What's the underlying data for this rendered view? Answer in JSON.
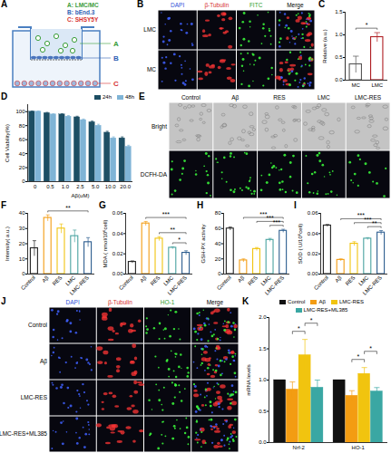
{
  "diagram": {
    "panel_label": "A",
    "legend": [
      {
        "key": "A",
        "text": "A: LMC/MC",
        "color": "#3a9d3a"
      },
      {
        "key": "B",
        "text": "B: bEnd.3",
        "color": "#2f5fb3"
      },
      {
        "key": "C",
        "text": "C: SHSY5Y",
        "color": "#d62f2f"
      }
    ]
  },
  "images": [
    {
      "panel_label": "B",
      "columns": [
        "DAPI",
        "β-Tubulin",
        "FITC",
        "Merge"
      ],
      "column_colors": [
        "#2f4fd8",
        "#d62f2f",
        "#2e9e2e",
        "#000000"
      ],
      "rows": [
        "LMC",
        "MC"
      ]
    },
    {
      "panel_label": "E",
      "columns": [
        "Control",
        "Aβ",
        "RES",
        "LMC",
        "LMC-RES"
      ],
      "rows": [
        "Bright",
        "DCFH-DA"
      ]
    },
    {
      "panel_label": "J",
      "columns": [
        "DAPI",
        "β-Tubulin",
        "HO-1",
        "Merge"
      ],
      "column_colors": [
        "#2f4fd8",
        "#d62f2f",
        "#2e9e2e",
        "#000000"
      ],
      "rows": [
        "Control",
        "Aβ",
        "LMC-RES",
        "LMC-RES+ML385"
      ]
    }
  ],
  "chart_data": [
    {
      "type": "bar",
      "panel_label": "C",
      "ylabel": "Relative (a.u.)",
      "categories": [
        "MC",
        "LMC"
      ],
      "series": [
        {
          "values": [
            0.35,
            0.95
          ],
          "errors": [
            0.18,
            0.1
          ]
        }
      ],
      "colors": [
        "#555555",
        "#b01e23"
      ],
      "ylim": [
        0,
        1.5
      ],
      "yticks": [
        {
          "value": 0,
          "label": "0.0"
        },
        {
          "value": 0.5,
          "label": "0.5"
        },
        {
          "value": 1,
          "label": "1.0"
        },
        {
          "value": 1.5,
          "label": "1.5"
        }
      ],
      "annotations": [
        {
          "text": "*",
          "from": "MC",
          "to": "LMC"
        }
      ]
    },
    {
      "type": "bar",
      "panel_label": "D",
      "ylabel": "Cell Viability(%)",
      "xlabel": "Aβ(uM)",
      "categories": [
        "0",
        "0.5",
        "1.0",
        "2.5",
        "5.0",
        "10.0",
        "20.0"
      ],
      "series": [
        {
          "name": "24h",
          "color": "#1d4e63",
          "values": [
            100,
            98,
            96,
            92,
            85,
            70,
            62
          ],
          "errors": [
            1,
            1,
            1,
            1.5,
            1.5,
            2,
            2
          ]
        },
        {
          "name": "48h",
          "color": "#7fb4d6",
          "values": [
            100,
            96,
            93,
            88,
            80,
            62,
            50
          ],
          "errors": [
            1,
            1,
            1.5,
            1.5,
            2,
            2,
            2
          ]
        }
      ],
      "ylim": [
        0,
        110
      ],
      "yticks": [
        0,
        20,
        40,
        60,
        80,
        100
      ],
      "legend": "top-right"
    },
    {
      "type": "bar",
      "panel_label": "F",
      "ylabel": "Intensity( a.u.)",
      "categories": [
        "Control",
        "Aβ",
        "RES",
        "LMC",
        "LMC-RES"
      ],
      "series": [
        {
          "values": [
            17,
            37,
            30,
            25,
            21
          ],
          "errors": [
            5,
            2,
            3,
            4,
            3
          ]
        }
      ],
      "colors": [
        "#222222",
        "#f39c12",
        "#f1c40f",
        "#4aa3a1",
        "#2c5d8f"
      ],
      "ylim": [
        0,
        40
      ],
      "yticks": [
        0,
        10,
        20,
        30,
        40
      ],
      "annotations": [
        {
          "text": "**",
          "from": "Aβ",
          "to": "LMC-RES"
        }
      ]
    },
    {
      "type": "bar",
      "panel_label": "G",
      "ylabel": "MDA ( nmol/10⁶cell)",
      "categories": [
        "Control",
        "Aβ",
        "RES",
        "LMC",
        "LMC-RES"
      ],
      "series": [
        {
          "values": [
            0.012,
            0.05,
            0.035,
            0.026,
            0.021
          ],
          "errors": [
            0.001,
            0.002,
            0.002,
            0.001,
            0.002
          ]
        }
      ],
      "colors": [
        "#222222",
        "#f39c12",
        "#f1c40f",
        "#4aa3a1",
        "#2c5d8f"
      ],
      "ylim": [
        0,
        0.06
      ],
      "yticks": [
        {
          "value": 0,
          "label": "0.00"
        },
        {
          "value": 0.02,
          "label": "0.02"
        },
        {
          "value": 0.04,
          "label": "0.04"
        },
        {
          "value": 0.06,
          "label": "0.06"
        }
      ],
      "annotations": [
        {
          "text": "*",
          "from": "LMC",
          "to": "LMC-RES"
        },
        {
          "text": "**",
          "from": "RES",
          "to": "LMC-RES"
        },
        {
          "text": "***",
          "from": "Aβ",
          "to": "LMC-RES"
        }
      ]
    },
    {
      "type": "bar",
      "panel_label": "H",
      "ylabel": "GSH-PX activity",
      "categories": [
        "Control",
        "Aβ",
        "RES",
        "LMC",
        "LMC-RES"
      ],
      "series": [
        {
          "values": [
            60,
            18,
            33,
            45,
            57
          ],
          "errors": [
            2,
            2,
            2,
            2,
            2
          ]
        }
      ],
      "colors": [
        "#222222",
        "#f39c12",
        "#f1c40f",
        "#4aa3a1",
        "#2c5d8f"
      ],
      "ylim": [
        0,
        80
      ],
      "yticks": [
        0,
        20,
        40,
        60,
        80
      ],
      "annotations": [
        {
          "text": "***",
          "from": "LMC",
          "to": "LMC-RES"
        },
        {
          "text": "***",
          "from": "RES",
          "to": "LMC-RES"
        },
        {
          "text": "***",
          "from": "Aβ",
          "to": "LMC-RES"
        }
      ]
    },
    {
      "type": "bar",
      "panel_label": "I",
      "ylabel": "SOD ( U/10⁶cell)",
      "categories": [
        "Control",
        "Aβ",
        "RES",
        "LMC",
        "LMC-RES"
      ],
      "series": [
        {
          "values": [
            0.048,
            0.014,
            0.03,
            0.035,
            0.041
          ],
          "errors": [
            0.001,
            0.001,
            0.002,
            0.001,
            0.002
          ]
        }
      ],
      "colors": [
        "#222222",
        "#f39c12",
        "#f1c40f",
        "#4aa3a1",
        "#2c5d8f"
      ],
      "ylim": [
        0,
        0.06
      ],
      "yticks": [
        {
          "value": 0,
          "label": "0.00"
        },
        {
          "value": 0.02,
          "label": "0.02"
        },
        {
          "value": 0.04,
          "label": "0.04"
        },
        {
          "value": 0.06,
          "label": "0.06"
        }
      ],
      "annotations": [
        {
          "text": "**",
          "from": "LMC",
          "to": "LMC-RES"
        },
        {
          "text": "***",
          "from": "RES",
          "to": "LMC-RES"
        },
        {
          "text": "***",
          "from": "Aβ",
          "to": "LMC-RES"
        }
      ]
    },
    {
      "type": "bar",
      "panel_label": "K",
      "ylabel": "mRNA levels",
      "categories": [
        "Nrf-2",
        "HO-1"
      ],
      "series": [
        {
          "name": "Control",
          "color": "#111111",
          "values": [
            1,
            1
          ],
          "errors": [
            0,
            0
          ]
        },
        {
          "name": "Aβ",
          "color": "#f39c12",
          "values": [
            0.85,
            0.75
          ],
          "errors": [
            0.12,
            0.08
          ]
        },
        {
          "name": "LMC-RES",
          "color": "#f1c40f",
          "values": [
            1.4,
            1.1
          ],
          "errors": [
            0.25,
            0.1
          ]
        },
        {
          "name": "LMC-RES+ML385",
          "color": "#3aa7a3",
          "values": [
            0.88,
            0.82
          ],
          "errors": [
            0.12,
            0.06
          ]
        }
      ],
      "ylim": [
        0,
        2
      ],
      "yticks": [
        {
          "value": 0,
          "label": "0.0"
        },
        {
          "value": 0.5,
          "label": "0.5"
        },
        {
          "value": 1,
          "label": "1.0"
        },
        {
          "value": 1.5,
          "label": "1.5"
        },
        {
          "value": 2,
          "label": "2.0"
        }
      ],
      "legend": "top",
      "annotations": [
        {
          "text": "*",
          "category": "Nrf-2",
          "from": "Aβ",
          "to": "LMC-RES"
        },
        {
          "text": "*",
          "category": "Nrf-2",
          "from": "LMC-RES",
          "to": "LMC-RES+ML385"
        },
        {
          "text": "*",
          "category": "HO-1",
          "from": "Aβ",
          "to": "LMC-RES"
        },
        {
          "text": "*",
          "category": "HO-1",
          "from": "LMC-RES",
          "to": "LMC-RES+ML385"
        }
      ]
    }
  ]
}
